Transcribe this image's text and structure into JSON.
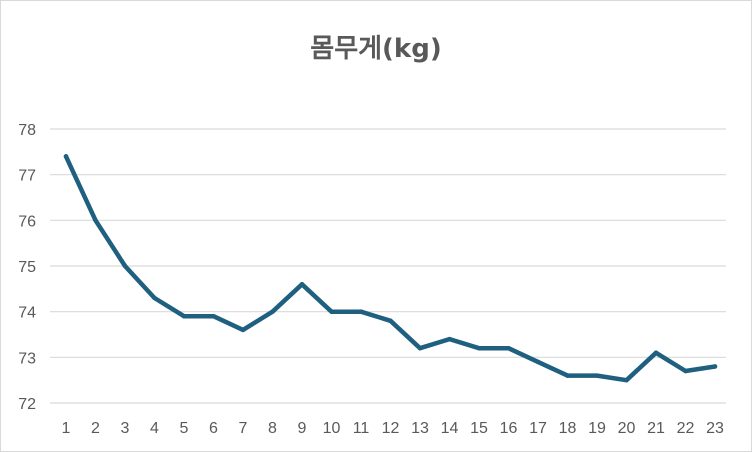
{
  "chart_data": {
    "type": "line",
    "title": "몸무게(kg)",
    "xlabel": "",
    "ylabel": "",
    "categories": [
      "1",
      "2",
      "3",
      "4",
      "5",
      "6",
      "7",
      "8",
      "9",
      "10",
      "11",
      "12",
      "13",
      "14",
      "15",
      "16",
      "17",
      "18",
      "19",
      "20",
      "21",
      "22",
      "23"
    ],
    "series": [
      {
        "values": [
          77.4,
          76.0,
          75.0,
          74.3,
          73.9,
          73.9,
          73.6,
          74.0,
          74.6,
          74.0,
          74.0,
          73.8,
          73.2,
          73.4,
          73.2,
          73.2,
          72.9,
          72.6,
          72.6,
          72.5,
          73.1,
          72.7,
          72.8
        ],
        "color": "#1f5f7f"
      }
    ],
    "ylim": [
      72,
      78
    ],
    "yticks": [
      "72",
      "73",
      "74",
      "75",
      "76",
      "77",
      "78"
    ],
    "grid": "horizontal",
    "legend": "none"
  }
}
